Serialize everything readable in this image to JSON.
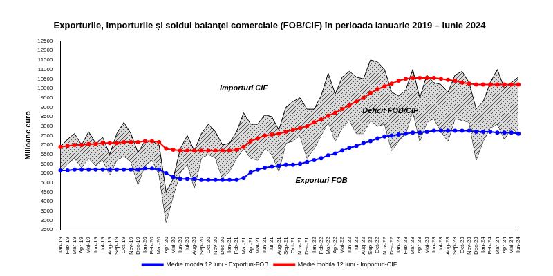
{
  "chart_data": {
    "type": "line",
    "title": "Exporturile, importurile şi soldul balanţei comerciale (FOB/CIF) în perioada ianuarie 2019 – iunie 2024",
    "y_label": "Milioane euro",
    "categories": [
      "Ian-19",
      "Feb-19",
      "Mar-19",
      "Apr-19",
      "Mai-19",
      "Iun-19",
      "Iul-19",
      "Aug-19",
      "Sep-19",
      "Oct-19",
      "Nov-19",
      "Dec-19",
      "Ian-20",
      "Feb-20",
      "Mar-20",
      "Apr-20",
      "Mai-20",
      "Iun-20",
      "Iul-20",
      "Aug-20",
      "Sep-20",
      "Oct-20",
      "Nov-20",
      "Dec-20",
      "Ian-21",
      "Feb-21",
      "Mar-21",
      "Apr-21",
      "Mai-21",
      "Iun-21",
      "Iul-21",
      "Aug-21",
      "Sep-21",
      "Oct-21",
      "Nov-21",
      "Dec-21",
      "Ian-22",
      "Feb-22",
      "Mar-22",
      "Apr-22",
      "Mai-22",
      "Iun-22",
      "Iul-22",
      "Aug-22",
      "Sep-22",
      "Oct-22",
      "Nov-22",
      "Dec-22",
      "Ian-23",
      "Feb-23",
      "Mar-23",
      "Apr-23",
      "Mai-23",
      "Iun-23",
      "Iul-23",
      "Aug-23",
      "Sep-23",
      "Oct-23",
      "Nov-23",
      "Dec-23",
      "Ian-24",
      "Feb-24",
      "Mar-24",
      "Apr-24",
      "Mai-24",
      "Iun-24"
    ],
    "series": [
      {
        "name": "Importuri CIF",
        "color": "#000000",
        "marker": "none",
        "values": [
          6900,
          7300,
          7600,
          7000,
          7700,
          7100,
          7400,
          6500,
          7600,
          8200,
          7600,
          6600,
          7200,
          7200,
          7000,
          4500,
          5200,
          6800,
          7500,
          6700,
          7600,
          8100,
          7700,
          7000,
          7100,
          7700,
          8700,
          8100,
          8100,
          8600,
          8500,
          7800,
          9000,
          9300,
          9500,
          8900,
          8900,
          9600,
          10800,
          9700,
          10600,
          10900,
          10600,
          10500,
          11500,
          11400,
          11000,
          9800,
          9600,
          9900,
          11000,
          9500,
          10700,
          10300,
          10200,
          9800,
          10700,
          10900,
          10300,
          8900,
          9300,
          10300,
          11000,
          10000,
          10300,
          10600
        ]
      },
      {
        "name": "Exporturi FOB",
        "color": "#000000",
        "marker": "none",
        "values": [
          5600,
          6000,
          6300,
          5800,
          6300,
          5900,
          6200,
          5400,
          6200,
          6400,
          6100,
          4900,
          5900,
          6200,
          5400,
          2900,
          4300,
          5500,
          6000,
          4700,
          6300,
          6500,
          6300,
          5200,
          5600,
          6300,
          6800,
          6300,
          6200,
          6800,
          6500,
          5600,
          7100,
          7200,
          7500,
          6300,
          6800,
          7500,
          8200,
          7200,
          7900,
          8300,
          7600,
          7600,
          8300,
          8000,
          8100,
          6700,
          7200,
          7600,
          8800,
          7200,
          8200,
          8400,
          7700,
          7200,
          8400,
          8300,
          8200,
          6200,
          7200,
          7900,
          8100,
          7300,
          7900,
          7600
        ]
      },
      {
        "name": "Medie mobila 12 luni - Exporturi-FOB",
        "color": "#0000ff",
        "marker": "circle",
        "values": [
          5650,
          5650,
          5700,
          5700,
          5700,
          5700,
          5700,
          5700,
          5700,
          5700,
          5700,
          5700,
          5750,
          5750,
          5700,
          5500,
          5300,
          5200,
          5200,
          5200,
          5150,
          5150,
          5150,
          5150,
          5150,
          5150,
          5250,
          5550,
          5700,
          5800,
          5850,
          5900,
          5950,
          5950,
          6000,
          6100,
          6200,
          6300,
          6450,
          6550,
          6700,
          6850,
          6950,
          7100,
          7200,
          7350,
          7450,
          7500,
          7550,
          7600,
          7650,
          7650,
          7700,
          7750,
          7750,
          7750,
          7750,
          7750,
          7750,
          7700,
          7700,
          7700,
          7650,
          7650,
          7650,
          7600
        ]
      },
      {
        "name": "Medie mobila 12 luni - Importuri-CIF",
        "color": "#ff0000",
        "marker": "circle",
        "values": [
          6900,
          6950,
          7000,
          7000,
          7050,
          7050,
          7100,
          7100,
          7100,
          7150,
          7150,
          7150,
          7200,
          7200,
          7150,
          6800,
          6750,
          6700,
          6700,
          6700,
          6700,
          6700,
          6700,
          6700,
          6700,
          6750,
          6900,
          7200,
          7350,
          7500,
          7550,
          7600,
          7700,
          7800,
          7900,
          8000,
          8200,
          8350,
          8550,
          8700,
          8900,
          9100,
          9300,
          9500,
          9750,
          9950,
          10100,
          10250,
          10400,
          10500,
          10550,
          10550,
          10550,
          10550,
          10500,
          10450,
          10400,
          10300,
          10250,
          10200,
          10200,
          10200,
          10200,
          10200,
          10200,
          10200
        ]
      }
    ],
    "annotations": [
      "Deficit FOB/CIF"
    ],
    "ylim": [
      2500,
      12500
    ],
    "yticks": [
      2500,
      3000,
      3500,
      4000,
      4500,
      5000,
      5500,
      6000,
      6500,
      7000,
      7500,
      8000,
      8500,
      9000,
      9500,
      10000,
      10500,
      11000,
      11500,
      12000,
      12500
    ],
    "grid": false,
    "legend": "bottom"
  }
}
